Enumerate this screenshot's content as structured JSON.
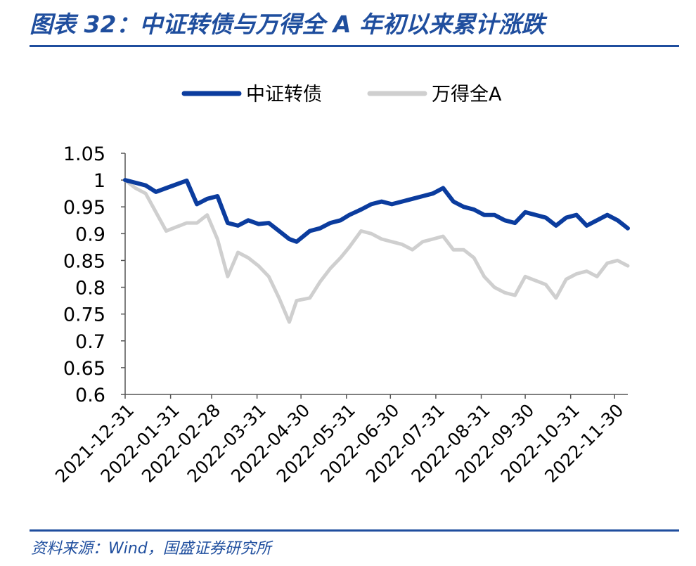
{
  "header": {
    "title": "图表 32：中证转债与万得全 A 年初以来累计涨跌"
  },
  "footer": {
    "source": "资料来源：Wind，国盛证券研究所"
  },
  "colors": {
    "accent": "#1f4e9e",
    "series_1": "#0b3c9e",
    "series_2": "#cfcfcf"
  },
  "chart_data": {
    "type": "line",
    "title": "",
    "xlabel": "",
    "ylabel": "",
    "ylim": [
      0.6,
      1.05
    ],
    "yticks": [
      "1.05",
      "1",
      "0.95",
      "0.9",
      "0.85",
      "0.8",
      "0.75",
      "0.7",
      "0.65",
      "0.6"
    ],
    "xticks": [
      "2021-12-31",
      "2022-01-31",
      "2022-02-28",
      "2022-03-31",
      "2022-04-30",
      "2022-05-31",
      "2022-06-30",
      "2022-07-31",
      "2022-08-31",
      "2022-09-30",
      "2022-10-31",
      "2022-11-30"
    ],
    "grid": false,
    "legend_position": "top-center",
    "x": [
      "2021-12-31",
      "2022-01-07",
      "2022-01-14",
      "2022-01-21",
      "2022-01-28",
      "2022-02-11",
      "2022-02-18",
      "2022-02-25",
      "2022-03-04",
      "2022-03-11",
      "2022-03-18",
      "2022-03-25",
      "2022-04-01",
      "2022-04-08",
      "2022-04-15",
      "2022-04-22",
      "2022-04-27",
      "2022-05-06",
      "2022-05-13",
      "2022-05-20",
      "2022-05-27",
      "2022-06-02",
      "2022-06-10",
      "2022-06-17",
      "2022-06-24",
      "2022-07-01",
      "2022-07-08",
      "2022-07-15",
      "2022-07-22",
      "2022-07-29",
      "2022-08-05",
      "2022-08-12",
      "2022-08-19",
      "2022-08-26",
      "2022-09-02",
      "2022-09-09",
      "2022-09-16",
      "2022-09-23",
      "2022-09-30",
      "2022-10-14",
      "2022-10-21",
      "2022-10-28",
      "2022-11-04",
      "2022-11-11",
      "2022-11-18",
      "2022-11-25",
      "2022-12-02",
      "2022-12-09"
    ],
    "series": [
      {
        "name": "中证转债",
        "values": [
          1.0,
          0.995,
          0.99,
          0.978,
          0.985,
          0.999,
          0.955,
          0.965,
          0.97,
          0.92,
          0.915,
          0.925,
          0.918,
          0.92,
          0.905,
          0.89,
          0.885,
          0.905,
          0.91,
          0.92,
          0.925,
          0.935,
          0.945,
          0.955,
          0.96,
          0.955,
          0.96,
          0.965,
          0.97,
          0.975,
          0.985,
          0.96,
          0.95,
          0.945,
          0.935,
          0.935,
          0.925,
          0.92,
          0.94,
          0.93,
          0.915,
          0.93,
          0.935,
          0.915,
          0.925,
          0.935,
          0.925,
          0.91
        ]
      },
      {
        "name": "万得全A",
        "values": [
          1.0,
          0.985,
          0.975,
          0.94,
          0.905,
          0.92,
          0.92,
          0.935,
          0.89,
          0.82,
          0.865,
          0.855,
          0.84,
          0.82,
          0.78,
          0.735,
          0.775,
          0.78,
          0.81,
          0.835,
          0.855,
          0.875,
          0.905,
          0.9,
          0.89,
          0.885,
          0.88,
          0.87,
          0.885,
          0.89,
          0.895,
          0.87,
          0.87,
          0.855,
          0.82,
          0.8,
          0.79,
          0.785,
          0.82,
          0.805,
          0.78,
          0.815,
          0.825,
          0.83,
          0.82,
          0.845,
          0.85,
          0.84
        ]
      }
    ]
  }
}
